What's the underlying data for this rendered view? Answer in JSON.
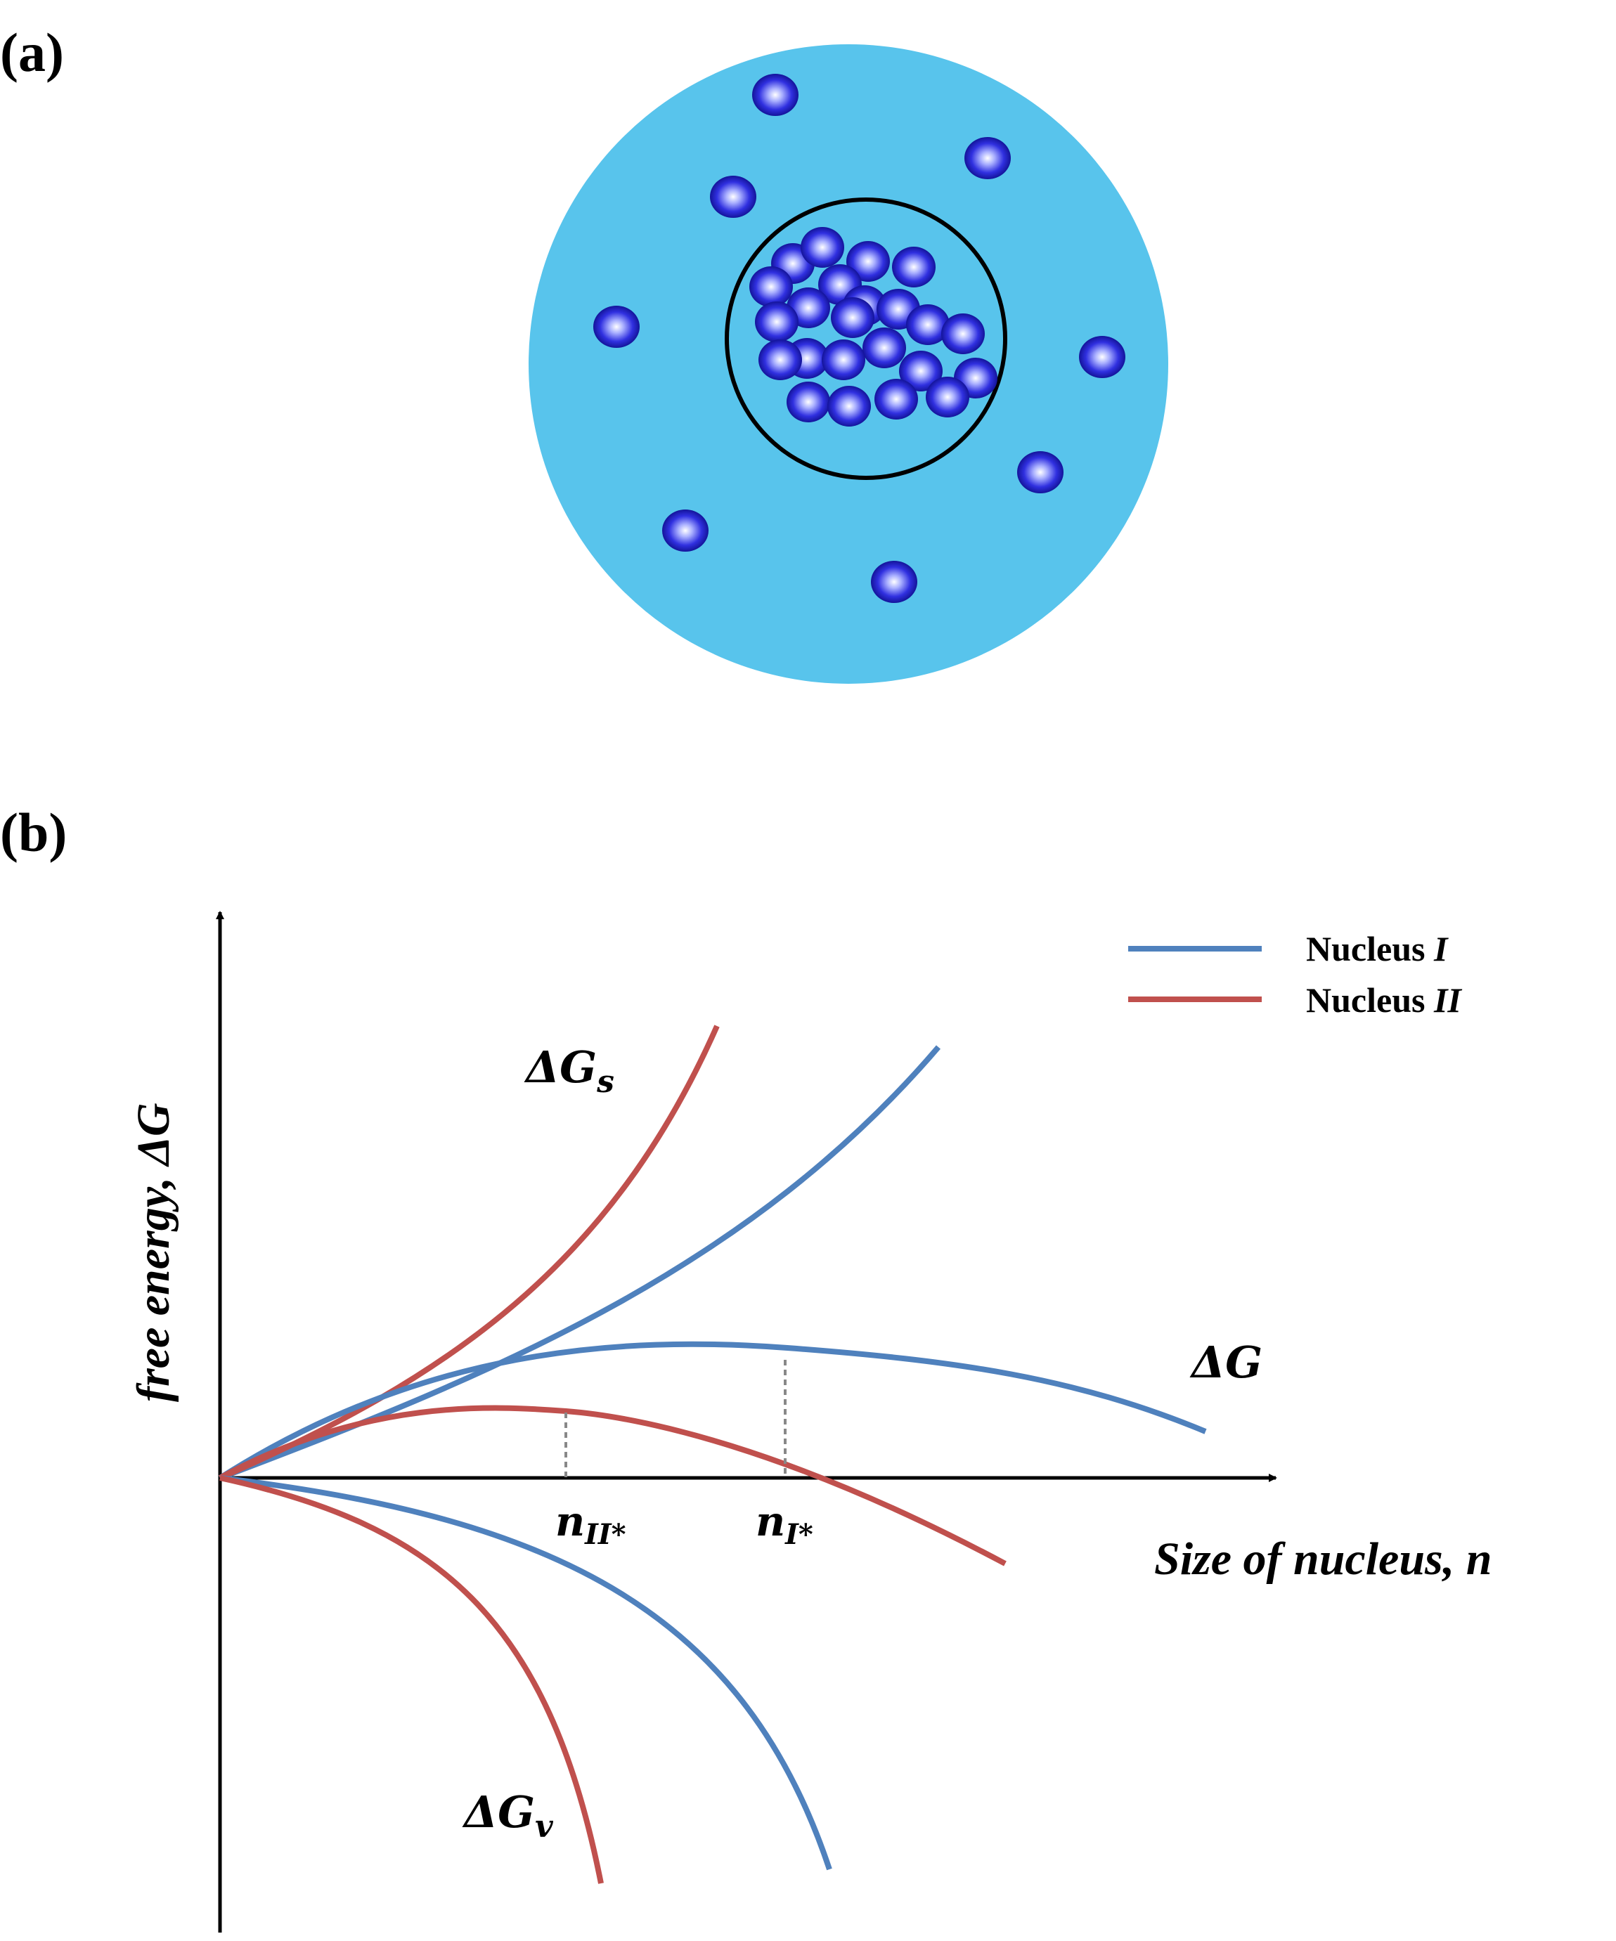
{
  "panel_a": {
    "label": "(a)"
  },
  "panel_b": {
    "label": "(b)",
    "y_axis_title": "free energy, ΔG",
    "x_axis_title": "Size of nucleus, n",
    "legend": [
      {
        "text": "Nucleus I",
        "color": "#4f81bd"
      },
      {
        "text": "Nucleus II",
        "color": "#c0504d"
      }
    ],
    "curve_labels": {
      "delta_g_s": "ΔGs",
      "delta_g": "ΔG",
      "delta_g_v": "ΔGv"
    },
    "critical_sizes": {
      "n_II": "nII*",
      "n_I": "nI*"
    }
  },
  "colors": {
    "solution": "#58c4ec",
    "particle": "#1c1ccc",
    "nucleus_I": "#4f81bd",
    "nucleus_II": "#c0504d"
  }
}
